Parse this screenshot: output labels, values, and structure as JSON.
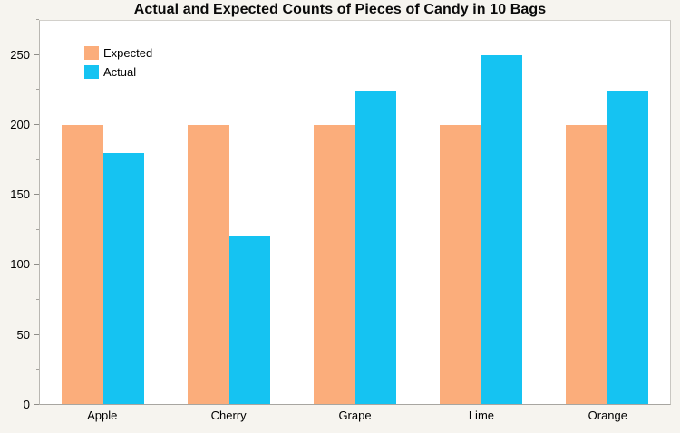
{
  "page": {
    "background_color": "#F6F4EF",
    "plot_background_color": "#FFFFFF",
    "frame_color": "#C9C7C2",
    "axis_color": "#A8A6A1",
    "text_color": "#000000"
  },
  "chart_data": {
    "type": "bar",
    "title": "Actual and Expected Counts of Pieces of Candy in 10 Bags",
    "categories": [
      "Apple",
      "Cherry",
      "Grape",
      "Lime",
      "Orange"
    ],
    "series": [
      {
        "name": "Expected",
        "color": "#FBAD7B",
        "values": [
          200,
          200,
          200,
          200,
          200
        ]
      },
      {
        "name": "Actual",
        "color": "#15C3F2",
        "values": [
          180,
          120,
          225,
          250,
          225
        ]
      }
    ],
    "xlabel": "",
    "ylabel": "",
    "ylim": [
      0,
      275
    ],
    "yticks_major": [
      0,
      50,
      100,
      150,
      200,
      250
    ],
    "yticks_minor": [
      25,
      75,
      125,
      175,
      225,
      275
    ],
    "legend_position": "top-left",
    "legend_entries": [
      "Expected",
      "Actual"
    ],
    "grid": false
  }
}
